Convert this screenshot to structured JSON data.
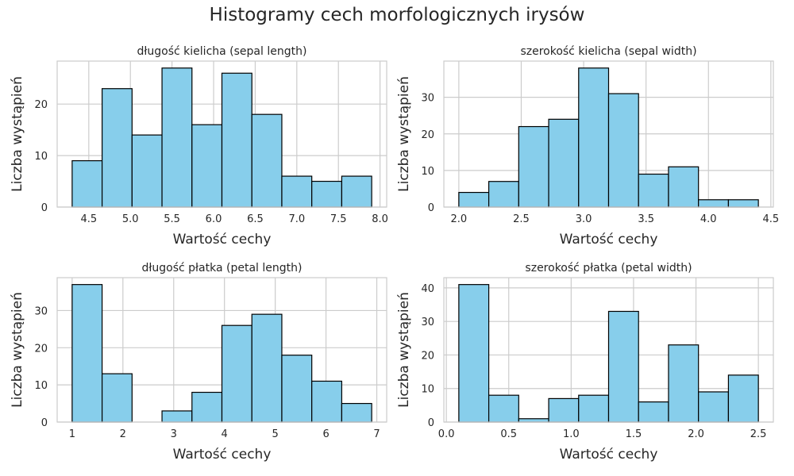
{
  "suptitle": "Histogramy cech morfologicznych irysów",
  "style": {
    "bar_fill": "#87ceeb",
    "bar_edge": "#000000",
    "grid": "#cccccc",
    "frame": "#cccccc",
    "background": "#ffffff"
  },
  "chart_data": [
    {
      "type": "bar",
      "title": "długość kielicha (sepal length)",
      "xlabel": "Wartość cechy",
      "ylabel": "Liczba wystąpień",
      "grid": true,
      "bin_edges": [
        4.3,
        4.66,
        5.02,
        5.38,
        5.74,
        6.1,
        6.46,
        6.82,
        7.18,
        7.54,
        7.9
      ],
      "values": [
        9,
        23,
        14,
        27,
        16,
        26,
        18,
        6,
        5,
        6
      ],
      "xlim": [
        4.12,
        8.08
      ],
      "ylim": [
        0,
        28.35
      ],
      "xticks": [
        4.5,
        5.0,
        5.5,
        6.0,
        6.5,
        7.0,
        7.5,
        8.0
      ],
      "xtick_labels": [
        "4.5",
        "5.0",
        "5.5",
        "6.0",
        "6.5",
        "7.0",
        "7.5",
        "8.0"
      ],
      "yticks": [
        0,
        10,
        20
      ],
      "ytick_labels": [
        "0",
        "10",
        "20"
      ]
    },
    {
      "type": "bar",
      "title": "szerokość kielicha (sepal width)",
      "xlabel": "Wartość cechy",
      "ylabel": "Liczba wystąpień",
      "grid": true,
      "bin_edges": [
        2.0,
        2.24,
        2.48,
        2.72,
        2.96,
        3.2,
        3.44,
        3.68,
        3.92,
        4.16,
        4.4
      ],
      "values": [
        4,
        7,
        22,
        24,
        38,
        31,
        9,
        11,
        2,
        2
      ],
      "xlim": [
        1.88,
        4.52
      ],
      "ylim": [
        0,
        39.9
      ],
      "xticks": [
        2.0,
        2.5,
        3.0,
        3.5,
        4.0,
        4.5
      ],
      "xtick_labels": [
        "2.0",
        "2.5",
        "3.0",
        "3.5",
        "4.0",
        "4.5"
      ],
      "yticks": [
        0,
        10,
        20,
        30
      ],
      "ytick_labels": [
        "0",
        "10",
        "20",
        "30"
      ]
    },
    {
      "type": "bar",
      "title": "długość płatka (petal length)",
      "xlabel": "Wartość cechy",
      "ylabel": "Liczba wystąpień",
      "grid": true,
      "bin_edges": [
        1.0,
        1.59,
        2.18,
        2.77,
        3.36,
        3.95,
        4.54,
        5.13,
        5.72,
        6.31,
        6.9
      ],
      "values": [
        37,
        13,
        0,
        3,
        8,
        26,
        29,
        18,
        11,
        5
      ],
      "xlim": [
        0.705,
        7.195
      ],
      "ylim": [
        0,
        38.85
      ],
      "xticks": [
        1,
        2,
        3,
        4,
        5,
        6,
        7
      ],
      "xtick_labels": [
        "1",
        "2",
        "3",
        "4",
        "5",
        "6",
        "7"
      ],
      "yticks": [
        0,
        10,
        20,
        30
      ],
      "ytick_labels": [
        "0",
        "10",
        "20",
        "30"
      ]
    },
    {
      "type": "bar",
      "title": "szerokość płatka (petal width)",
      "xlabel": "Wartość cechy",
      "ylabel": "Liczba wystąpień",
      "grid": true,
      "bin_edges": [
        0.1,
        0.34,
        0.58,
        0.82,
        1.06,
        1.3,
        1.54,
        1.78,
        2.02,
        2.26,
        2.5
      ],
      "values": [
        41,
        8,
        1,
        7,
        8,
        33,
        6,
        23,
        9,
        14
      ],
      "xlim": [
        -0.02,
        2.62
      ],
      "ylim": [
        0,
        43.05
      ],
      "xticks": [
        0.0,
        0.5,
        1.0,
        1.5,
        2.0,
        2.5
      ],
      "xtick_labels": [
        "0.0",
        "0.5",
        "1.0",
        "1.5",
        "2.0",
        "2.5"
      ],
      "yticks": [
        0,
        10,
        20,
        30,
        40
      ],
      "ytick_labels": [
        "0",
        "10",
        "20",
        "30",
        "40"
      ]
    }
  ]
}
